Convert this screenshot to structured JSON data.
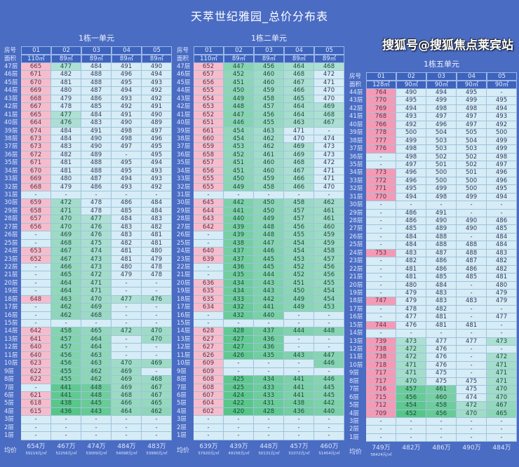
{
  "title": "天萃世纪雅园_总价分布表",
  "watermark": "搜狐号@搜狐焦点莱宾站",
  "colors": {
    "background": "#4a6cc2",
    "cell": "#d6ecf6",
    "pink_light": "#f7bccb",
    "pink_strong": "#f59ab5",
    "green": "#3fbf73"
  },
  "labels": {
    "room": "房号",
    "area": "面积",
    "average": "均价"
  },
  "tables": [
    {
      "name": "1栋一单元",
      "rooms": [
        "01",
        "02",
        "03",
        "04",
        "05"
      ],
      "areas": [
        "110㎡",
        "89㎡",
        "89㎡",
        "89㎡",
        "89㎡"
      ],
      "rows": [
        [
          "47层",
          "665",
          "477",
          "484",
          "491",
          "490"
        ],
        [
          "46层",
          "671",
          "482",
          "488",
          "496",
          "494"
        ],
        [
          "45层",
          "670",
          "481",
          "488",
          "495",
          "493"
        ],
        [
          "44层",
          "669",
          "480",
          "487",
          "494",
          "492"
        ],
        [
          "43层",
          "668",
          "479",
          "486",
          "493",
          "492"
        ],
        [
          "42层",
          "667",
          "478",
          "485",
          "492",
          "491"
        ],
        [
          "41层",
          "665",
          "477",
          "484",
          "491",
          "490"
        ],
        [
          "40层",
          "664",
          "476",
          "483",
          "490",
          "489"
        ],
        [
          "39层",
          "674",
          "484",
          "491",
          "498",
          "497"
        ],
        [
          "38层",
          "673",
          "484",
          "490",
          "498",
          "496"
        ],
        [
          "37层",
          "673",
          "483",
          "490",
          "497",
          "495"
        ],
        [
          "36层",
          "672",
          "482",
          "489",
          "-",
          "495"
        ],
        [
          "35层",
          "671",
          "481",
          "488",
          "495",
          "494"
        ],
        [
          "34层",
          "670",
          "481",
          "488",
          "495",
          "493"
        ],
        [
          "33层",
          "669",
          "480",
          "487",
          "494",
          "493"
        ],
        [
          "32层",
          "668",
          "479",
          "486",
          "493",
          "492"
        ],
        [
          "31层",
          "-",
          "-",
          "-",
          "-",
          "-"
        ],
        [
          "30层",
          "659",
          "472",
          "478",
          "486",
          "484"
        ],
        [
          "29层",
          "658",
          "471",
          "478",
          "485",
          "484"
        ],
        [
          "28层",
          "657",
          "470",
          "477",
          "484",
          "483"
        ],
        [
          "27层",
          "656",
          "470",
          "476",
          "483",
          "482"
        ],
        [
          "26层",
          "-",
          "469",
          "476",
          "483",
          "481"
        ],
        [
          "25层",
          "-",
          "468",
          "475",
          "482",
          "481"
        ],
        [
          "24层",
          "653",
          "467",
          "474",
          "481",
          "480"
        ],
        [
          "23层",
          "652",
          "467",
          "473",
          "481",
          "479"
        ],
        [
          "22层",
          "-",
          "466",
          "473",
          "480",
          "478"
        ],
        [
          "21层",
          "-",
          "465",
          "472",
          "479",
          "478"
        ],
        [
          "20层",
          "-",
          "464",
          "471",
          "-",
          "-"
        ],
        [
          "19层",
          "-",
          "464",
          "471",
          "-",
          "-"
        ],
        [
          "18层",
          "648",
          "463",
          "470",
          "477",
          "476"
        ],
        [
          "17层",
          "-",
          "462",
          "469",
          "-",
          "-"
        ],
        [
          "16层",
          "-",
          "462",
          "468",
          "-",
          "-"
        ],
        [
          "15层",
          "-",
          "-",
          "-",
          "-",
          "-"
        ],
        [
          "14层",
          "642",
          "458",
          "465",
          "472",
          "470"
        ],
        [
          "13层",
          "641",
          "457",
          "464",
          "-",
          "470"
        ],
        [
          "12层",
          "640",
          "457",
          "464",
          "-",
          "-"
        ],
        [
          "11层",
          "640",
          "456",
          "463",
          "-",
          "-"
        ],
        [
          "10层",
          "623",
          "456",
          "463",
          "470",
          "469"
        ],
        [
          "9层",
          "622",
          "455",
          "462",
          "469",
          "-"
        ],
        [
          "8层",
          "622",
          "455",
          "462",
          "469",
          "468"
        ],
        [
          "7层",
          "-",
          "441",
          "448",
          "469",
          "467"
        ],
        [
          "6层",
          "621",
          "441",
          "448",
          "468",
          "467"
        ],
        [
          "5层",
          "618",
          "438",
          "445",
          "466",
          "465"
        ],
        [
          "4层",
          "615",
          "436",
          "443",
          "464",
          "462"
        ],
        [
          "3层",
          "-",
          "-",
          "-",
          "-",
          "-"
        ],
        [
          "2层",
          "-",
          "-",
          "-",
          "-",
          "-"
        ],
        [
          "1层",
          "-",
          "-",
          "-",
          "-",
          "-"
        ]
      ],
      "averages": [
        {
          "price": "654万",
          "unit": "59219元/㎡"
        },
        {
          "price": "467万",
          "unit": "52256元/㎡"
        },
        {
          "price": "474万",
          "unit": "53009元/㎡"
        },
        {
          "price": "484万",
          "unit": "54098元/㎡"
        },
        {
          "price": "483万",
          "unit": "53990元/㎡"
        }
      ]
    },
    {
      "name": "1栋二单元",
      "rooms": [
        "01",
        "02",
        "03",
        "04",
        "05"
      ],
      "areas": [
        "110㎡",
        "89㎡",
        "89㎡",
        "89㎡",
        "89㎡"
      ],
      "rows": [
        [
          "47层",
          "652",
          "447",
          "456",
          "464",
          "468"
        ],
        [
          "46层",
          "657",
          "452",
          "460",
          "468",
          "472"
        ],
        [
          "45层",
          "656",
          "451",
          "460",
          "467",
          "471"
        ],
        [
          "44层",
          "655",
          "450",
          "459",
          "466",
          "470"
        ],
        [
          "43层",
          "654",
          "449",
          "458",
          "465",
          "470"
        ],
        [
          "42层",
          "653",
          "448",
          "457",
          "464",
          "469"
        ],
        [
          "41层",
          "652",
          "447",
          "456",
          "464",
          "468"
        ],
        [
          "40层",
          "651",
          "446",
          "455",
          "463",
          "467"
        ],
        [
          "39层",
          "661",
          "454",
          "463",
          "471",
          "-"
        ],
        [
          "38层",
          "660",
          "454",
          "462",
          "470",
          "474"
        ],
        [
          "37层",
          "659",
          "453",
          "462",
          "469",
          "473"
        ],
        [
          "36层",
          "658",
          "452",
          "461",
          "469",
          "473"
        ],
        [
          "35层",
          "657",
          "451",
          "460",
          "468",
          "472"
        ],
        [
          "34层",
          "656",
          "451",
          "460",
          "467",
          "471"
        ],
        [
          "33层",
          "655",
          "450",
          "459",
          "466",
          "471"
        ],
        [
          "32层",
          "655",
          "449",
          "458",
          "466",
          "470"
        ],
        [
          "31层",
          "-",
          "-",
          "-",
          "-",
          "-"
        ],
        [
          "30层",
          "645",
          "442",
          "450",
          "458",
          "462"
        ],
        [
          "29层",
          "644",
          "441",
          "450",
          "457",
          "461"
        ],
        [
          "28层",
          "643",
          "440",
          "449",
          "457",
          "461"
        ],
        [
          "27层",
          "642",
          "439",
          "448",
          "456",
          "460"
        ],
        [
          "26层",
          "-",
          "439",
          "448",
          "455",
          "459"
        ],
        [
          "25层",
          "-",
          "438",
          "447",
          "454",
          "459"
        ],
        [
          "24层",
          "640",
          "437",
          "446",
          "454",
          "458"
        ],
        [
          "23层",
          "639",
          "437",
          "445",
          "453",
          "457"
        ],
        [
          "22层",
          "-",
          "436",
          "445",
          "452",
          "456"
        ],
        [
          "21层",
          "-",
          "435",
          "444",
          "452",
          "456"
        ],
        [
          "20层",
          "636",
          "434",
          "443",
          "451",
          "455"
        ],
        [
          "19层",
          "635",
          "434",
          "443",
          "450",
          "454"
        ],
        [
          "18层",
          "635",
          "433",
          "442",
          "449",
          "454"
        ],
        [
          "17层",
          "634",
          "432",
          "441",
          "449",
          "453"
        ],
        [
          "16层",
          "-",
          "432",
          "440",
          "-",
          "-"
        ],
        [
          "15层",
          "-",
          "-",
          "-",
          "-",
          "-"
        ],
        [
          "14层",
          "628",
          "428",
          "437",
          "444",
          "448"
        ],
        [
          "13层",
          "627",
          "427",
          "436",
          "-",
          "-"
        ],
        [
          "12层",
          "627",
          "427",
          "436",
          "-",
          "-"
        ],
        [
          "11层",
          "626",
          "426",
          "435",
          "443",
          "447"
        ],
        [
          "10层",
          "609",
          "-",
          "-",
          "-",
          "446"
        ],
        [
          "9层",
          "609",
          "-",
          "-",
          "-",
          "-"
        ],
        [
          "8层",
          "608",
          "425",
          "434",
          "441",
          "446"
        ],
        [
          "7层",
          "608",
          "425",
          "433",
          "441",
          "445"
        ],
        [
          "6层",
          "607",
          "424",
          "433",
          "441",
          "445"
        ],
        [
          "5层",
          "604",
          "422",
          "431",
          "438",
          "442"
        ],
        [
          "4层",
          "602",
          "420",
          "428",
          "436",
          "440"
        ],
        [
          "3层",
          "-",
          "-",
          "-",
          "-",
          "-"
        ],
        [
          "2层",
          "-",
          "-",
          "-",
          "-",
          "-"
        ],
        [
          "1层",
          "-",
          "-",
          "-",
          "-",
          "-"
        ]
      ],
      "averages": [
        {
          "price": "639万",
          "unit": "57920元/㎡"
        },
        {
          "price": "439万",
          "unit": "49156元/㎡"
        },
        {
          "price": "448万",
          "unit": "50131元/㎡"
        },
        {
          "price": "457万",
          "unit": "51072元/㎡"
        },
        {
          "price": "460万",
          "unit": "51454元/㎡"
        }
      ]
    },
    {
      "name": "1栋五单元",
      "rooms": [
        "01",
        "02",
        "03",
        "04",
        "05"
      ],
      "areas": [
        "128㎡",
        "90㎡",
        "90㎡",
        "90㎡",
        "90㎡"
      ],
      "rows": [
        [
          "44层",
          "764",
          "490",
          "494",
          "495",
          "-"
        ],
        [
          "43层",
          "770",
          "495",
          "499",
          "499",
          "495"
        ],
        [
          "42层",
          "769",
          "494",
          "498",
          "498",
          "494"
        ],
        [
          "41层",
          "768",
          "493",
          "497",
          "497",
          "493"
        ],
        [
          "40层",
          "766",
          "492",
          "496",
          "497",
          "492"
        ],
        [
          "39层",
          "778",
          "500",
          "504",
          "505",
          "500"
        ],
        [
          "38层",
          "777",
          "499",
          "503",
          "504",
          "499"
        ],
        [
          "37层",
          "776",
          "498",
          "503",
          "503",
          "499"
        ],
        [
          "36层",
          "-",
          "498",
          "502",
          "502",
          "498"
        ],
        [
          "35层",
          "-",
          "497",
          "501",
          "502",
          "497"
        ],
        [
          "34层",
          "773",
          "496",
          "500",
          "501",
          "496"
        ],
        [
          "33层",
          "772",
          "496",
          "500",
          "500",
          "496"
        ],
        [
          "32层",
          "771",
          "495",
          "499",
          "500",
          "495"
        ],
        [
          "31层",
          "770",
          "494",
          "498",
          "499",
          "494"
        ],
        [
          "30层",
          "-",
          "-",
          "-",
          "-",
          "-"
        ],
        [
          "29层",
          "-",
          "486",
          "491",
          "-",
          "-"
        ],
        [
          "28层",
          "-",
          "486",
          "490",
          "490",
          "486"
        ],
        [
          "27层",
          "-",
          "485",
          "489",
          "490",
          "485"
        ],
        [
          "26层",
          "-",
          "484",
          "488",
          "-",
          "484"
        ],
        [
          "25层",
          "-",
          "484",
          "488",
          "488",
          "484"
        ],
        [
          "24层",
          "753",
          "483",
          "487",
          "488",
          "483"
        ],
        [
          "23层",
          "-",
          "482",
          "486",
          "487",
          "482"
        ],
        [
          "22层",
          "-",
          "481",
          "486",
          "486",
          "482"
        ],
        [
          "21层",
          "-",
          "481",
          "485",
          "485",
          "481"
        ],
        [
          "20层",
          "-",
          "480",
          "484",
          "-",
          "480"
        ],
        [
          "19层",
          "-",
          "479",
          "483",
          "-",
          "479"
        ],
        [
          "18层",
          "747",
          "479",
          "483",
          "483",
          "479"
        ],
        [
          "17层",
          "-",
          "478",
          "482",
          "-",
          "-"
        ],
        [
          "16层",
          "-",
          "477",
          "481",
          "-",
          "477"
        ],
        [
          "15层",
          "744",
          "476",
          "481",
          "481",
          "-"
        ],
        [
          "14层",
          "-",
          "-",
          "-",
          "-",
          "-"
        ],
        [
          "13层",
          "739",
          "473",
          "477",
          "477",
          "473"
        ],
        [
          "12层",
          "738",
          "472",
          "476",
          "-",
          "-"
        ],
        [
          "11层",
          "738",
          "472",
          "476",
          "-",
          "472"
        ],
        [
          "10层",
          "718",
          "471",
          "476",
          "-",
          "471"
        ],
        [
          "9层",
          "717",
          "471",
          "475",
          "-",
          "471"
        ],
        [
          "8层",
          "717",
          "470",
          "475",
          "475",
          "471"
        ],
        [
          "7层",
          "716",
          "457",
          "461",
          "475",
          "470"
        ],
        [
          "6层",
          "715",
          "456",
          "460",
          "474",
          "470"
        ],
        [
          "5层",
          "712",
          "454",
          "458",
          "472",
          "467"
        ],
        [
          "4层",
          "709",
          "452",
          "456",
          "470",
          "465"
        ],
        [
          "3层",
          "-",
          "-",
          "-",
          "-",
          "-"
        ],
        [
          "2层",
          "-",
          "-",
          "-",
          "-",
          "-"
        ],
        [
          "1层",
          "-",
          "-",
          "-",
          "-",
          "-"
        ]
      ],
      "averages": [
        {
          "price": "749万",
          "unit": "58424元/㎡"
        },
        {
          "price": "482万",
          "unit": ""
        },
        {
          "price": "486万",
          "unit": ""
        },
        {
          "price": "490万",
          "unit": ""
        },
        {
          "price": "484万",
          "unit": ""
        }
      ]
    }
  ]
}
